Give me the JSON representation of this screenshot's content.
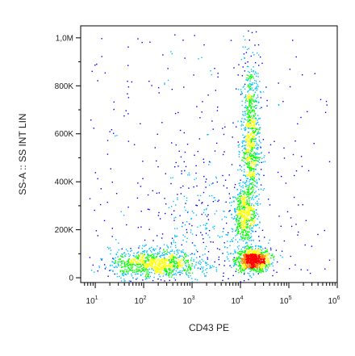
{
  "chart_data": {
    "type": "scatter",
    "style": "density-dot-plot",
    "xlabel": "CD43 PE",
    "ylabel": "SS-A :: SS INT LIN",
    "x_scale": "log",
    "xlim": [
      5,
      1000000
    ],
    "ylim": [
      -20000,
      1050000
    ],
    "x_ticks": [
      {
        "value": 10,
        "base": "10",
        "exp": "1"
      },
      {
        "value": 100,
        "base": "10",
        "exp": "2"
      },
      {
        "value": 1000,
        "base": "10",
        "exp": "3"
      },
      {
        "value": 10000,
        "base": "10",
        "exp": "4"
      },
      {
        "value": 100000,
        "base": "10",
        "exp": "5"
      },
      {
        "value": 1000000,
        "base": "10",
        "exp": "6"
      }
    ],
    "y_ticks": [
      {
        "value": 0,
        "label": "0"
      },
      {
        "value": 200000,
        "label": "200K"
      },
      {
        "value": 400000,
        "label": "400K"
      },
      {
        "value": 600000,
        "label": "600K"
      },
      {
        "value": 800000,
        "label": "800K"
      },
      {
        "value": 1000000,
        "label": "1,0M"
      }
    ],
    "populations": [
      {
        "x_log10": 4.25,
        "y": 75000,
        "sd_x": 0.18,
        "sd_y": 25000,
        "density": "high"
      },
      {
        "x_log10": 4.2,
        "y": 560000,
        "sd_x": 0.1,
        "sd_y": 180000,
        "density": "high"
      },
      {
        "x_log10": 4.05,
        "y": 260000,
        "sd_x": 0.12,
        "sd_y": 60000,
        "density": "medium"
      },
      {
        "x_log10": 2.2,
        "y": 60000,
        "sd_x": 0.45,
        "sd_y": 30000,
        "density": "high"
      },
      {
        "x_log10": 3.1,
        "y": 200000,
        "sd_x": 0.5,
        "sd_y": 180000,
        "density": "low"
      }
    ],
    "colormap": [
      "#0000ff",
      "#00c0ff",
      "#00ff00",
      "#ffff00",
      "#ff8000",
      "#ff0000"
    ],
    "grid": false
  }
}
